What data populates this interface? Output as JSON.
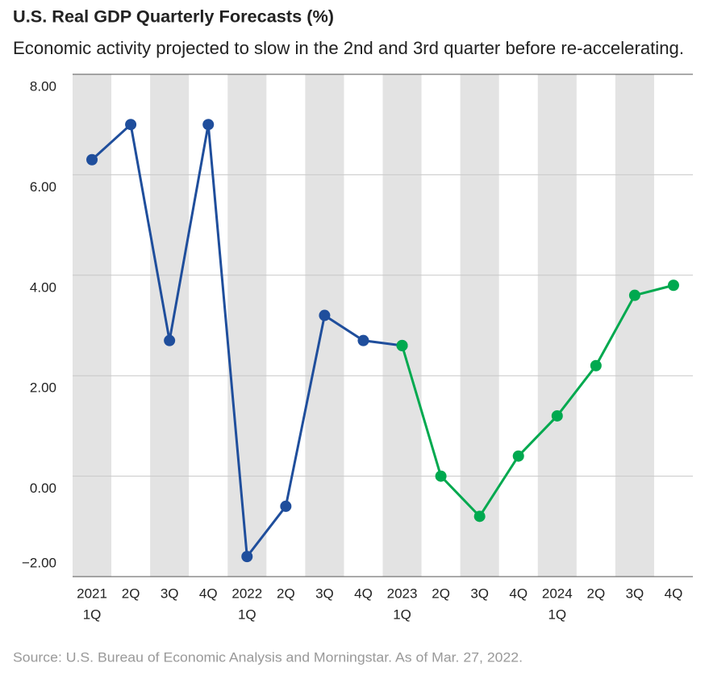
{
  "chart_data": {
    "type": "line",
    "title": "U.S. Real GDP Quarterly Forecasts (%)",
    "subtitle": "Economic activity projected to slow in the 2nd and 3rd quarter before re-accelerating.",
    "source": "Source: U.S. Bureau of Economic Analysis and Morningstar. As of Mar. 27, 2022.",
    "categories": [
      [
        "2021",
        "1Q"
      ],
      [
        "2Q"
      ],
      [
        "3Q"
      ],
      [
        "4Q"
      ],
      [
        "2022",
        "1Q"
      ],
      [
        "2Q"
      ],
      [
        "3Q"
      ],
      [
        "4Q"
      ],
      [
        "2023",
        "1Q"
      ],
      [
        "2Q"
      ],
      [
        "3Q"
      ],
      [
        "4Q"
      ],
      [
        "2024",
        "1Q"
      ],
      [
        "2Q"
      ],
      [
        "3Q"
      ],
      [
        "4Q"
      ]
    ],
    "series": [
      {
        "color": "#1f4e9c",
        "values": [
          6.3,
          7.0,
          2.7,
          7.0,
          -1.6,
          -0.6,
          3.2,
          2.7,
          2.6,
          null,
          null,
          null,
          null,
          null,
          null,
          null
        ]
      },
      {
        "color": "#00a94f",
        "values": [
          null,
          null,
          null,
          null,
          null,
          null,
          null,
          null,
          2.6,
          0.0,
          -0.8,
          0.4,
          1.2,
          2.2,
          3.6,
          3.8
        ]
      }
    ],
    "ylim": [
      -2,
      8
    ],
    "yticks": [
      {
        "value": -2,
        "label": "−2.00"
      },
      {
        "value": 0,
        "label": "0.00"
      },
      {
        "value": 2,
        "label": "2.00"
      },
      {
        "value": 4,
        "label": "4.00"
      },
      {
        "value": 6,
        "label": "6.00"
      },
      {
        "value": 8,
        "label": "8.00"
      }
    ],
    "grid": true,
    "band_color": "#e3e3e3"
  }
}
